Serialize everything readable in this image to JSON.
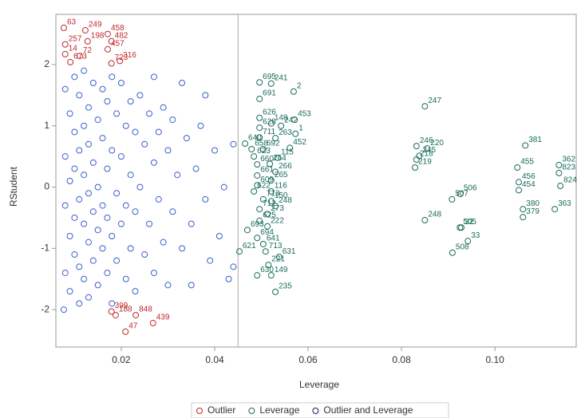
{
  "chart_data": {
    "type": "scatter",
    "x_label": "Leverage",
    "y_label": "RStudent",
    "xlim": [
      0.006,
      0.1174
    ],
    "ylim": [
      -2.61,
      2.82
    ],
    "xticks": [
      0.02,
      0.04,
      0.06,
      0.08,
      {
        "value": 0.1,
        "label": "0.10"
      }
    ],
    "yticks": [
      -2,
      -1,
      0,
      1,
      2
    ],
    "reference_x": 0.045,
    "series": [
      {
        "name": "Outlier",
        "color": "#c0282e",
        "labels": [
          "63",
          "249",
          "458",
          "198",
          "482",
          "257",
          "457",
          "14",
          "72",
          "316",
          "673",
          "723",
          "399",
          "188",
          "848",
          "439",
          "47"
        ],
        "x": [
          0.0077,
          0.0123,
          0.0171,
          0.0128,
          0.0179,
          0.008,
          0.0171,
          0.008,
          0.0111,
          0.0197,
          0.0091,
          0.0179,
          0.0179,
          0.0188,
          0.0231,
          0.0268,
          0.0209
        ],
        "values": [
          2.6,
          2.56,
          2.5,
          2.38,
          2.38,
          2.33,
          2.25,
          2.17,
          2.14,
          2.06,
          2.04,
          2.02,
          -2.03,
          -2.09,
          -2.09,
          -2.22,
          -2.36
        ]
      },
      {
        "name": "Leverage",
        "color": "#1a6b5a",
        "labels": [
          "695",
          "241",
          "2",
          "691",
          "453",
          "626",
          "148",
          "242",
          "628",
          "1",
          "711",
          "263",
          "640",
          "692",
          "658",
          "452",
          "623",
          "115",
          "660",
          "264",
          "661",
          "266",
          "265",
          "609",
          "622",
          "116",
          "713",
          "150",
          "712",
          "248",
          "273",
          "625",
          "222",
          "693",
          "694",
          "641",
          "621",
          "713",
          "631",
          "221",
          "630",
          "149",
          "235",
          "247",
          "246",
          "220",
          "245",
          "218",
          "219",
          "507",
          "506",
          "248",
          "505",
          "32",
          "508",
          "33",
          "381",
          "455",
          "456",
          "454",
          "362",
          "823",
          "824",
          "380",
          "379",
          "363"
        ],
        "x": [
          0.0496,
          0.0521,
          0.0569,
          0.0496,
          0.0571,
          0.0496,
          0.0521,
          0.0542,
          0.0496,
          0.0573,
          0.0496,
          0.053,
          0.0465,
          0.0504,
          0.0479,
          0.0561,
          0.0484,
          0.0535,
          0.0491,
          0.0518,
          0.0491,
          0.053,
          0.0521,
          0.0491,
          0.0484,
          0.0521,
          0.0504,
          0.0521,
          0.0496,
          0.053,
          0.0513,
          0.0496,
          0.0513,
          0.047,
          0.0491,
          0.0504,
          0.0453,
          0.0509,
          0.0538,
          0.0515,
          0.0491,
          0.0521,
          0.053,
          0.085,
          0.0832,
          0.0855,
          0.0838,
          0.0832,
          0.0829,
          0.0908,
          0.0926,
          0.085,
          0.0925,
          0.0928,
          0.0909,
          0.0942,
          0.1065,
          0.1048,
          0.1051,
          0.1051,
          0.1137,
          0.1137,
          0.114,
          0.106,
          0.106,
          0.1128
        ],
        "values": [
          1.71,
          1.69,
          1.56,
          1.44,
          1.1,
          1.13,
          1.04,
          1.0,
          0.97,
          0.87,
          0.81,
          0.8,
          0.71,
          0.62,
          0.62,
          0.64,
          0.5,
          0.48,
          0.37,
          0.38,
          0.19,
          0.25,
          0.11,
          0.03,
          -0.07,
          -0.07,
          -0.2,
          -0.23,
          -0.36,
          -0.31,
          -0.44,
          -0.55,
          -0.64,
          -0.7,
          -0.83,
          -0.93,
          -1.05,
          -1.05,
          -1.14,
          -1.27,
          -1.44,
          -1.44,
          -1.71,
          1.32,
          0.67,
          0.63,
          0.51,
          0.45,
          0.32,
          -0.2,
          -0.11,
          -0.54,
          -0.66,
          -0.66,
          -1.07,
          -0.88,
          0.68,
          0.32,
          0.08,
          -0.05,
          0.36,
          0.23,
          0.02,
          -0.36,
          -0.49,
          -0.36
        ]
      },
      {
        "name": "Outlier and Leverage",
        "color": "#1c1c5e",
        "labels": [],
        "x": [],
        "values": []
      },
      {
        "color": "#3a5fcd",
        "x": [
          0.008,
          0.008,
          0.008,
          0.008,
          0.009,
          0.009,
          0.009,
          0.009,
          0.01,
          0.01,
          0.01,
          0.01,
          0.01,
          0.011,
          0.011,
          0.011,
          0.011,
          0.011,
          0.012,
          0.012,
          0.012,
          0.012,
          0.012,
          0.013,
          0.013,
          0.013,
          0.013,
          0.013,
          0.014,
          0.014,
          0.014,
          0.014,
          0.015,
          0.015,
          0.015,
          0.015,
          0.016,
          0.016,
          0.016,
          0.016,
          0.017,
          0.017,
          0.017,
          0.017,
          0.018,
          0.018,
          0.018,
          0.018,
          0.019,
          0.019,
          0.019,
          0.02,
          0.02,
          0.02,
          0.021,
          0.021,
          0.021,
          0.022,
          0.022,
          0.022,
          0.023,
          0.023,
          0.023,
          0.024,
          0.024,
          0.025,
          0.025,
          0.026,
          0.026,
          0.027,
          0.027,
          0.027,
          0.028,
          0.028,
          0.029,
          0.029,
          0.03,
          0.03,
          0.031,
          0.031,
          0.032,
          0.033,
          0.033,
          0.034,
          0.035,
          0.035,
          0.036,
          0.037,
          0.038,
          0.038,
          0.039,
          0.04,
          0.041,
          0.042,
          0.043,
          0.044,
          0.044,
          0.0077
        ],
        "values": [
          1.6,
          0.5,
          -0.3,
          -1.4,
          1.2,
          0.1,
          -0.8,
          -1.7,
          1.8,
          0.9,
          0.3,
          -0.5,
          -1.1,
          1.5,
          0.6,
          -0.2,
          -1.3,
          -1.9,
          1.9,
          1.0,
          0.2,
          -0.6,
          -1.5,
          1.3,
          0.7,
          -0.1,
          -0.9,
          -1.8,
          1.7,
          0.4,
          -0.4,
          -1.2,
          1.1,
          0.0,
          -0.7,
          -1.6,
          1.6,
          0.8,
          -0.3,
          -1.0,
          1.4,
          0.3,
          -0.5,
          -1.4,
          1.8,
          0.6,
          -0.8,
          -1.9,
          1.2,
          -0.1,
          -1.2,
          1.7,
          0.5,
          -0.6,
          1.0,
          -0.3,
          -1.5,
          1.4,
          0.2,
          -1.0,
          0.9,
          -0.4,
          -1.7,
          1.5,
          0.0,
          0.7,
          -1.1,
          1.2,
          -0.6,
          1.8,
          0.4,
          -1.4,
          0.9,
          -0.2,
          1.3,
          -0.9,
          0.6,
          -1.6,
          1.1,
          -0.4,
          0.2,
          1.7,
          -1.0,
          0.8,
          -0.6,
          -1.6,
          0.3,
          1.0,
          1.5,
          -0.2,
          -1.2,
          0.6,
          -0.8,
          0.0,
          -1.5,
          0.7,
          -1.3,
          -2.0
        ]
      }
    ]
  }
}
